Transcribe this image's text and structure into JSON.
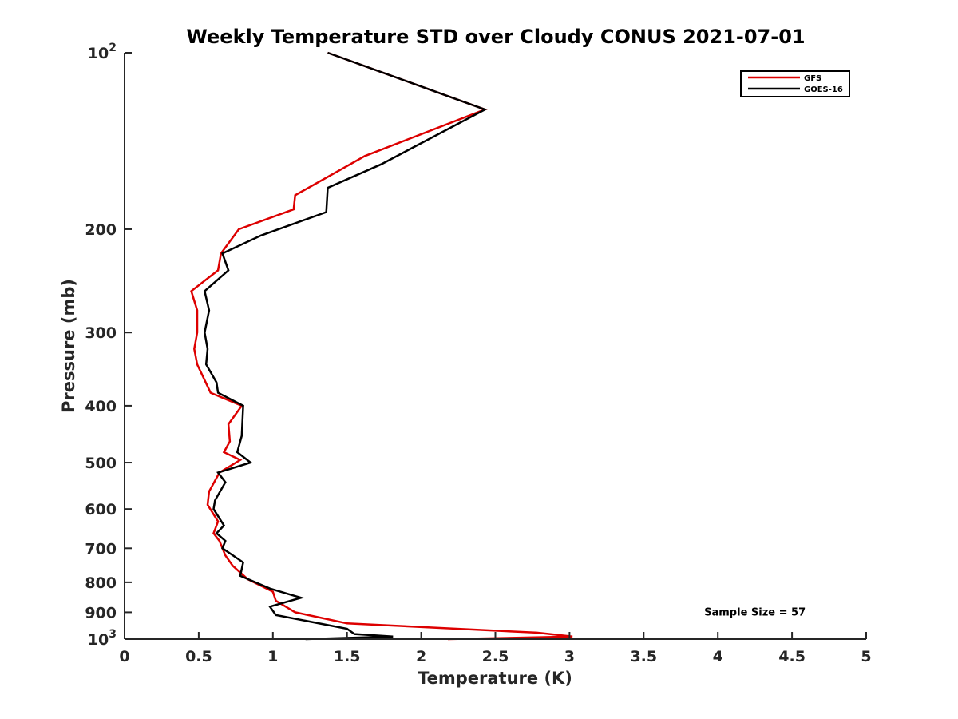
{
  "chart_data": {
    "type": "line",
    "title": "Weekly Temperature STD over Cloudy CONUS 2021-07-01",
    "xlabel": "Temperature (K)",
    "ylabel": "Pressure (mb)",
    "xlim": [
      0,
      5
    ],
    "ylim": [
      100,
      1000
    ],
    "y_scale": "log",
    "y_reversed": true,
    "grid": false,
    "legend_position": "top-right",
    "x_ticks": [
      {
        "value": 0,
        "label": "0"
      },
      {
        "value": 0.5,
        "label": "0.5"
      },
      {
        "value": 1,
        "label": "1"
      },
      {
        "value": 1.5,
        "label": "1.5"
      },
      {
        "value": 2,
        "label": "2"
      },
      {
        "value": 2.5,
        "label": "2.5"
      },
      {
        "value": 3,
        "label": "3"
      },
      {
        "value": 3.5,
        "label": "3.5"
      },
      {
        "value": 4,
        "label": "4"
      },
      {
        "value": 4.5,
        "label": "4.5"
      },
      {
        "value": 5,
        "label": "5"
      }
    ],
    "y_ticks": [
      {
        "value": 100,
        "label": "10",
        "exponent": "2"
      },
      {
        "value": 200,
        "label": "200"
      },
      {
        "value": 300,
        "label": "300"
      },
      {
        "value": 400,
        "label": "400"
      },
      {
        "value": 500,
        "label": "500"
      },
      {
        "value": 600,
        "label": "600"
      },
      {
        "value": 700,
        "label": "700"
      },
      {
        "value": 800,
        "label": "800"
      },
      {
        "value": 900,
        "label": "900"
      },
      {
        "value": 1000,
        "label": "10",
        "exponent": "3"
      }
    ],
    "series": [
      {
        "name": "GFS",
        "color": "#dd0000",
        "points": [
          [
            1.37,
            100
          ],
          [
            2.43,
            125
          ],
          [
            1.62,
            150
          ],
          [
            1.15,
            175
          ],
          [
            1.14,
            185
          ],
          [
            0.77,
            200
          ],
          [
            0.65,
            220
          ],
          [
            0.63,
            235
          ],
          [
            0.45,
            255
          ],
          [
            0.49,
            275
          ],
          [
            0.49,
            300
          ],
          [
            0.47,
            320
          ],
          [
            0.49,
            340
          ],
          [
            0.58,
            380
          ],
          [
            0.79,
            400
          ],
          [
            0.7,
            430
          ],
          [
            0.71,
            460
          ],
          [
            0.67,
            480
          ],
          [
            0.78,
            495
          ],
          [
            0.64,
            520
          ],
          [
            0.57,
            560
          ],
          [
            0.56,
            590
          ],
          [
            0.63,
            630
          ],
          [
            0.6,
            660
          ],
          [
            0.64,
            680
          ],
          [
            0.68,
            720
          ],
          [
            0.73,
            750
          ],
          [
            0.83,
            790
          ],
          [
            1.0,
            830
          ],
          [
            1.02,
            860
          ],
          [
            1.15,
            900
          ],
          [
            1.5,
            940
          ],
          [
            2.78,
            975
          ],
          [
            3.02,
            990
          ],
          [
            2.18,
            1000
          ]
        ]
      },
      {
        "name": "GOES-16",
        "color": "#000000",
        "points": [
          [
            1.37,
            100
          ],
          [
            2.43,
            125
          ],
          [
            1.73,
            155
          ],
          [
            1.37,
            170
          ],
          [
            1.36,
            187
          ],
          [
            0.92,
            205
          ],
          [
            0.66,
            220
          ],
          [
            0.7,
            235
          ],
          [
            0.54,
            255
          ],
          [
            0.57,
            275
          ],
          [
            0.54,
            300
          ],
          [
            0.56,
            320
          ],
          [
            0.55,
            340
          ],
          [
            0.62,
            365
          ],
          [
            0.63,
            380
          ],
          [
            0.8,
            400
          ],
          [
            0.79,
            450
          ],
          [
            0.76,
            480
          ],
          [
            0.85,
            500
          ],
          [
            0.63,
            520
          ],
          [
            0.68,
            540
          ],
          [
            0.61,
            580
          ],
          [
            0.6,
            600
          ],
          [
            0.67,
            640
          ],
          [
            0.62,
            660
          ],
          [
            0.68,
            680
          ],
          [
            0.66,
            700
          ],
          [
            0.8,
            740
          ],
          [
            0.78,
            780
          ],
          [
            0.98,
            820
          ],
          [
            1.12,
            840
          ],
          [
            1.19,
            850
          ],
          [
            0.98,
            880
          ],
          [
            1.02,
            910
          ],
          [
            1.5,
            960
          ],
          [
            1.55,
            980
          ],
          [
            1.81,
            990
          ],
          [
            1.22,
            1000
          ]
        ]
      }
    ],
    "annotations": [
      {
        "text": "Sample Size = 57",
        "x": 4.25,
        "y": 900
      }
    ]
  }
}
